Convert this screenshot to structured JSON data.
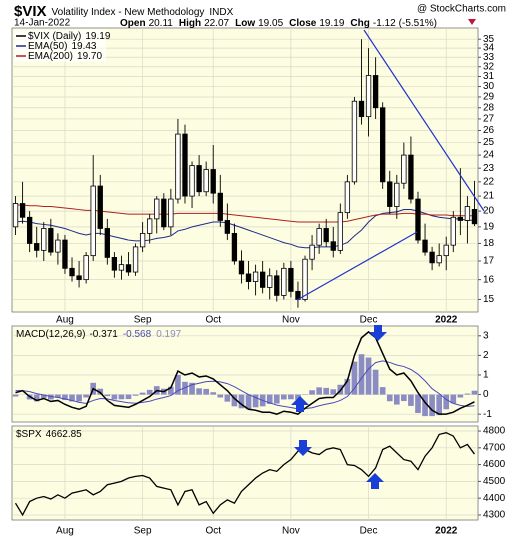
{
  "header": {
    "symbol": "$VIX",
    "name": "Volatility Index - New Methodology",
    "exchange": "INDX",
    "source": "@ StockCharts.com",
    "date": "14-Jan-2022",
    "quote": [
      {
        "label": "Open",
        "value": 20.11
      },
      {
        "label": "High",
        "value": 22.07
      },
      {
        "label": "Low",
        "value": 19.05
      },
      {
        "label": "Close",
        "value": 19.19
      },
      {
        "label": "Chg",
        "value": -1.12
      }
    ],
    "change_percent": {
      "value": -5.51,
      "label": "(-5.51%)"
    }
  },
  "chart_data": [
    {
      "type": "candlestick",
      "name": "$VIX (Daily)",
      "log_scale": true,
      "grid": true,
      "color": "#000000",
      "categories": [
        null,
        null,
        null,
        null,
        null,
        null,
        null,
        "Aug",
        null,
        null,
        null,
        null,
        null,
        null,
        null,
        null,
        null,
        null,
        "Sep",
        null,
        null,
        null,
        null,
        null,
        null,
        null,
        null,
        null,
        "Oct",
        null,
        null,
        null,
        null,
        null,
        null,
        null,
        null,
        null,
        null,
        "Nov",
        null,
        null,
        null,
        null,
        null,
        null,
        null,
        null,
        null,
        null,
        "Dec",
        null,
        null,
        null,
        null,
        null,
        null,
        null,
        null,
        null,
        null,
        "2022",
        null,
        null,
        null,
        null
      ],
      "open": [
        19.0,
        20.5,
        19.6,
        18.0,
        17.6,
        18.9,
        17.5,
        18.2,
        16.6,
        16.2,
        16.0,
        17.3,
        21.7,
        18.9,
        17.2,
        16.5,
        16.8,
        16.4,
        17.8,
        18.6,
        19.5,
        20.8,
        19.0,
        20.8,
        25.7,
        21.0,
        23.2,
        21.3,
        22.9,
        21.2,
        19.4,
        18.6,
        17.0,
        16.3,
        15.9,
        16.4,
        15.6,
        16.2,
        15.2,
        16.6,
        15.4,
        15.0,
        17.1,
        17.9,
        18.9,
        18.1,
        17.6,
        19.9,
        22.0,
        28.6,
        27.2,
        31.1,
        28.0,
        22.0,
        20.3,
        21.9,
        24.0,
        20.8,
        18.2,
        17.5,
        16.9,
        17.3,
        17.9,
        19.6,
        19.4,
        20.11
      ],
      "high": [
        21.0,
        22.0,
        20.0,
        19.0,
        19.3,
        19.5,
        18.6,
        18.5,
        17.2,
        17.0,
        17.5,
        24.0,
        22.5,
        19.5,
        17.5,
        17.3,
        17.5,
        18.0,
        19.3,
        19.8,
        21.0,
        21.2,
        21.5,
        27.0,
        26.5,
        23.5,
        24.0,
        23.5,
        24.8,
        22.5,
        20.5,
        19.2,
        17.6,
        17.0,
        16.8,
        17.0,
        16.6,
        16.5,
        16.9,
        17.0,
        15.9,
        17.3,
        18.5,
        19.2,
        19.5,
        19.0,
        20.5,
        22.5,
        29.0,
        35.0,
        34.0,
        33.0,
        28.5,
        22.8,
        22.5,
        25.0,
        25.5,
        21.3,
        19.2,
        17.8,
        18.0,
        18.4,
        20.0,
        23.0,
        21.0,
        22.07
      ],
      "low": [
        18.5,
        19.2,
        17.5,
        17.2,
        17.0,
        17.3,
        16.8,
        16.3,
        15.9,
        15.6,
        15.8,
        17.0,
        18.5,
        16.8,
        16.1,
        16.0,
        16.2,
        16.2,
        17.5,
        18.0,
        18.6,
        18.8,
        18.5,
        20.5,
        20.5,
        20.2,
        21.0,
        21.0,
        20.5,
        19.0,
        18.2,
        16.8,
        15.8,
        15.5,
        15.2,
        15.3,
        15.0,
        14.9,
        15.0,
        15.1,
        14.6,
        14.9,
        16.5,
        17.4,
        17.8,
        17.2,
        17.4,
        19.5,
        21.8,
        26.5,
        25.5,
        27.0,
        21.5,
        19.8,
        19.5,
        21.5,
        20.5,
        18.0,
        17.3,
        16.5,
        16.7,
        16.5,
        17.5,
        18.5,
        18.0,
        19.05
      ],
      "close": [
        20.5,
        19.6,
        18.0,
        17.6,
        18.9,
        17.5,
        18.2,
        16.6,
        16.2,
        16.0,
        17.3,
        21.7,
        18.9,
        17.2,
        16.5,
        16.8,
        16.4,
        17.8,
        18.6,
        19.5,
        20.8,
        19.0,
        20.8,
        25.7,
        21.0,
        23.2,
        21.3,
        22.9,
        21.2,
        19.4,
        18.6,
        17.0,
        16.3,
        15.9,
        16.4,
        15.6,
        16.2,
        15.2,
        16.6,
        15.4,
        15.0,
        17.1,
        17.9,
        18.9,
        18.1,
        17.6,
        19.9,
        22.0,
        28.6,
        27.2,
        31.1,
        28.0,
        22.0,
        20.3,
        21.9,
        24.0,
        20.8,
        18.2,
        17.5,
        16.9,
        17.3,
        17.9,
        19.6,
        19.4,
        20.3,
        19.19
      ],
      "series": [
        {
          "name": "EMA(50)",
          "color": "#1c2a8c",
          "values": [
            19.3,
            19.35,
            19.3,
            19.2,
            19.15,
            19.1,
            19.0,
            18.9,
            18.75,
            18.6,
            18.5,
            18.6,
            18.6,
            18.5,
            18.4,
            18.3,
            18.2,
            18.15,
            18.15,
            18.2,
            18.3,
            18.35,
            18.45,
            18.75,
            18.85,
            19.0,
            19.1,
            19.2,
            19.3,
            19.3,
            19.25,
            19.1,
            18.95,
            18.8,
            18.65,
            18.5,
            18.35,
            18.2,
            18.05,
            17.95,
            17.8,
            17.75,
            17.75,
            17.8,
            17.8,
            17.8,
            17.9,
            18.05,
            18.45,
            18.8,
            19.3,
            19.7,
            19.85,
            19.9,
            19.95,
            20.1,
            20.1,
            20.0,
            19.85,
            19.7,
            19.6,
            19.55,
            19.5,
            19.5,
            19.4,
            19.43
          ]
        },
        {
          "name": "EMA(200)",
          "color": "#b02020",
          "legend_value": {
            "value": 19.7,
            "label": "19.70"
          },
          "values": [
            20.4,
            20.4,
            20.35,
            20.35,
            20.3,
            20.3,
            20.25,
            20.2,
            20.15,
            20.1,
            20.05,
            20.05,
            20.0,
            19.95,
            19.9,
            19.85,
            19.8,
            19.8,
            19.8,
            19.8,
            19.8,
            19.8,
            19.8,
            19.85,
            19.85,
            19.85,
            19.85,
            19.85,
            19.85,
            19.85,
            19.8,
            19.75,
            19.7,
            19.65,
            19.6,
            19.55,
            19.5,
            19.45,
            19.4,
            19.35,
            19.3,
            19.3,
            19.3,
            19.3,
            19.3,
            19.3,
            19.3,
            19.35,
            19.45,
            19.55,
            19.65,
            19.75,
            19.8,
            19.8,
            19.8,
            19.85,
            19.85,
            19.8,
            19.8,
            19.75,
            19.75,
            19.75,
            19.7,
            19.7,
            19.7,
            19.7
          ]
        }
      ],
      "ylim": [
        14.4,
        36.3
      ],
      "yticks": [
        15,
        16,
        17,
        18,
        19,
        20,
        21,
        22,
        23,
        24,
        25,
        26,
        27,
        28,
        29,
        30,
        31,
        32,
        33,
        34,
        35
      ]
    },
    {
      "type": "macd",
      "title": "MACD(12,26,9)",
      "grid": true,
      "macd_color": "#000000",
      "signal_color": "#4b4bb8",
      "histogram_color": "#8c8cc4",
      "macd": [
        0.1,
        0.2,
        -0.1,
        -0.3,
        -0.2,
        -0.35,
        -0.3,
        -0.5,
        -0.65,
        -0.75,
        -0.6,
        0.3,
        0.1,
        -0.3,
        -0.55,
        -0.6,
        -0.65,
        -0.5,
        -0.3,
        -0.1,
        0.2,
        0.15,
        0.35,
        1.2,
        1.0,
        1.1,
        0.9,
        0.95,
        0.8,
        0.5,
        0.2,
        -0.2,
        -0.5,
        -0.75,
        -0.8,
        -0.9,
        -0.9,
        -1.0,
        -0.85,
        -0.9,
        -1.0,
        -0.7,
        -0.45,
        -0.2,
        -0.15,
        -0.15,
        0.2,
        0.7,
        2.0,
        2.9,
        3.2,
        2.9,
        2.1,
        1.3,
        1.0,
        1.1,
        0.7,
        0.1,
        -0.4,
        -0.8,
        -1.0,
        -1.0,
        -0.9,
        -0.7,
        -0.55,
        -0.371
      ],
      "signal": [
        0.2,
        0.2,
        0.15,
        0.05,
        -0.02,
        -0.1,
        -0.15,
        -0.22,
        -0.3,
        -0.4,
        -0.45,
        -0.3,
        -0.2,
        -0.22,
        -0.3,
        -0.36,
        -0.42,
        -0.44,
        -0.4,
        -0.34,
        -0.23,
        -0.15,
        -0.05,
        0.2,
        0.35,
        0.5,
        0.58,
        0.66,
        0.68,
        0.65,
        0.56,
        0.4,
        0.2,
        0.0,
        -0.15,
        -0.3,
        -0.42,
        -0.54,
        -0.6,
        -0.66,
        -0.73,
        -0.72,
        -0.67,
        -0.57,
        -0.49,
        -0.42,
        -0.3,
        -0.1,
        0.32,
        0.84,
        1.31,
        1.63,
        1.72,
        1.64,
        1.51,
        1.43,
        1.28,
        1.04,
        0.7,
        0.3,
        0.05,
        -0.25,
        -0.45,
        -0.55,
        -0.6,
        -0.568
      ],
      "histogram": [
        -0.1,
        0,
        -0.25,
        -0.35,
        -0.18,
        -0.25,
        -0.15,
        -0.28,
        -0.35,
        -0.35,
        -0.15,
        0.6,
        0.3,
        -0.08,
        -0.25,
        -0.24,
        -0.23,
        -0.06,
        0.1,
        0.24,
        0.43,
        0.3,
        0.4,
        1.0,
        0.65,
        0.6,
        0.32,
        0.29,
        0.12,
        -0.15,
        -0.36,
        -0.6,
        -0.7,
        -0.75,
        -0.65,
        -0.6,
        -0.48,
        -0.46,
        -0.25,
        -0.24,
        -0.27,
        0.02,
        0.22,
        0.37,
        0.34,
        0.27,
        0.5,
        0.8,
        1.68,
        2.06,
        1.89,
        1.27,
        0.38,
        -0.34,
        -0.51,
        -0.33,
        -0.58,
        -0.94,
        -1.1,
        -1.1,
        -1.05,
        -0.75,
        -0.45,
        -0.15,
        0.05,
        0.197
      ],
      "ylim": [
        -1.4,
        3.5
      ],
      "yticks": [
        -1,
        0,
        1,
        2,
        3
      ]
    },
    {
      "type": "line",
      "title": "$SPX",
      "grid": true,
      "color": "#000000",
      "categories": [
        null,
        null,
        null,
        null,
        null,
        null,
        null,
        "Aug",
        null,
        null,
        null,
        null,
        null,
        null,
        null,
        null,
        null,
        null,
        "Sep",
        null,
        null,
        null,
        null,
        null,
        null,
        null,
        null,
        null,
        "Oct",
        null,
        null,
        null,
        null,
        null,
        null,
        null,
        null,
        null,
        null,
        "Nov",
        null,
        null,
        null,
        null,
        null,
        null,
        null,
        null,
        null,
        null,
        "Dec",
        null,
        null,
        null,
        null,
        null,
        null,
        null,
        null,
        null,
        null,
        "2022",
        null,
        null,
        null,
        null
      ],
      "values": [
        4370,
        4300,
        4380,
        4400,
        4410,
        4395,
        4420,
        4400,
        4430,
        4440,
        4450,
        4420,
        4440,
        4480,
        4490,
        4500,
        4520,
        4530,
        4535,
        4520,
        4470,
        4460,
        4450,
        4360,
        4440,
        4450,
        4360,
        4380,
        4310,
        4360,
        4390,
        4370,
        4440,
        4480,
        4520,
        4550,
        4570,
        4560,
        4600,
        4630,
        4680,
        4690,
        4670,
        4660,
        4690,
        4700,
        4690,
        4600,
        4595,
        4570,
        4530,
        4580,
        4690,
        4710,
        4670,
        4630,
        4620,
        4570,
        4650,
        4700,
        4780,
        4790,
        4770,
        4700,
        4720,
        4662.85
      ],
      "ylim": [
        4270,
        4830
      ],
      "yticks": [
        4300,
        4400,
        4500,
        4600,
        4700,
        4800
      ]
    }
  ]
}
